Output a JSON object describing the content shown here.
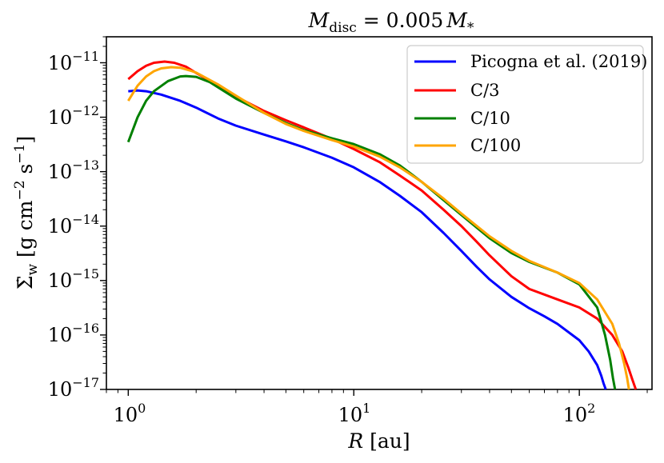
{
  "chart_data": {
    "type": "line",
    "title": "M_disc = 0.005 M_*",
    "title_parts": {
      "sym": "M",
      "sub": "disc",
      "eq": " = 0.005",
      "sym2": "M",
      "sub2": "*"
    },
    "xlabel": "R [au]",
    "xlabel_parts": {
      "sym": "R",
      "unit": " [au]"
    },
    "ylabel": "Σ̇w [g cm^-2 s^-1]",
    "ylabel_parts": {
      "sym": "Σ̇",
      "sub": "w",
      "unit1": " [g cm",
      "exp1": "−2",
      "unit2": " s",
      "exp2": "−1",
      "unit3": "]"
    },
    "xscale": "log",
    "yscale": "log",
    "xlim": [
      0.8,
      210
    ],
    "ylim": [
      1e-17,
      3e-11
    ],
    "legend_position": "top-right",
    "xticks": [
      {
        "value": 1,
        "base": "10",
        "exp": "0"
      },
      {
        "value": 10,
        "base": "10",
        "exp": "1"
      },
      {
        "value": 100,
        "base": "10",
        "exp": "2"
      }
    ],
    "yticks": [
      {
        "value": 1e-11,
        "base": "10",
        "exp": "−11"
      },
      {
        "value": 1e-12,
        "base": "10",
        "exp": "−12"
      },
      {
        "value": 1e-13,
        "base": "10",
        "exp": "−13"
      },
      {
        "value": 1e-14,
        "base": "10",
        "exp": "−14"
      },
      {
        "value": 1e-15,
        "base": "10",
        "exp": "−15"
      },
      {
        "value": 1e-16,
        "base": "10",
        "exp": "−16"
      },
      {
        "value": 1e-17,
        "base": "10",
        "exp": "−17"
      }
    ],
    "series": [
      {
        "name": "Picogna et al. (2019)",
        "color": "#0000ff",
        "x": [
          1.0,
          1.1,
          1.2,
          1.4,
          1.7,
          2.0,
          2.5,
          3.0,
          4.0,
          5.0,
          6.0,
          8.0,
          10.0,
          13.0,
          16.0,
          20.0,
          25.0,
          30.0,
          35.0,
          40.0,
          50.0,
          60.0,
          70.0,
          80.0,
          100.0,
          110.0,
          120.0,
          125.0,
          128.0,
          131.0
        ],
        "y": [
          3e-12,
          3.1e-12,
          3e-12,
          2.6e-12,
          2e-12,
          1.5e-12,
          9.5e-13,
          7e-13,
          4.8e-13,
          3.6e-13,
          2.8e-13,
          1.8e-13,
          1.2e-13,
          6.5e-14,
          3.6e-14,
          1.8e-14,
          7.5e-15,
          3.5e-15,
          1.8e-15,
          1.05e-15,
          5e-16,
          3.1e-16,
          2.2e-16,
          1.6e-16,
          8e-17,
          5e-17,
          2.8e-17,
          1.8e-17,
          1.3e-17,
          1e-17
        ]
      },
      {
        "name": "C/3",
        "color": "#ff0000",
        "x": [
          1.0,
          1.1,
          1.2,
          1.3,
          1.45,
          1.6,
          1.8,
          2.0,
          2.5,
          3.0,
          4.0,
          5.0,
          6.0,
          8.0,
          10.0,
          13.0,
          16.0,
          20.0,
          25.0,
          30.0,
          35.0,
          40.0,
          50.0,
          60.0,
          80.0,
          100.0,
          120.0,
          140.0,
          155.0,
          165.0,
          172.0,
          178.0
        ],
        "y": [
          5e-12,
          7e-12,
          8.8e-12,
          1e-11,
          1.05e-11,
          1e-11,
          8.5e-12,
          6.5e-12,
          3.8e-12,
          2.4e-12,
          1.3e-12,
          8.8e-13,
          6.5e-13,
          4e-13,
          2.6e-13,
          1.5e-13,
          8.5e-14,
          4.5e-14,
          2e-14,
          1e-14,
          5.2e-15,
          2.9e-15,
          1.2e-15,
          7e-16,
          4.5e-16,
          3.2e-16,
          2e-16,
          1e-16,
          5e-17,
          2.5e-17,
          1.5e-17,
          1e-17
        ]
      },
      {
        "name": "C/10",
        "color": "#008000",
        "x": [
          1.0,
          1.1,
          1.2,
          1.3,
          1.5,
          1.7,
          1.8,
          2.0,
          2.3,
          2.6,
          3.0,
          4.0,
          5.0,
          6.0,
          8.0,
          10.0,
          13.0,
          16.0,
          20.0,
          25.0,
          30.0,
          40.0,
          50.0,
          60.0,
          80.0,
          100.0,
          120.0,
          130.0,
          137.0,
          141.0,
          144.0
        ],
        "y": [
          3.5e-13,
          1e-12,
          2e-12,
          3e-12,
          4.6e-12,
          5.6e-12,
          5.7e-12,
          5.5e-12,
          4.4e-12,
          3.2e-12,
          2.2e-12,
          1.2e-12,
          7.8e-13,
          5.8e-13,
          4.1e-13,
          3.2e-13,
          2.1e-13,
          1.3e-13,
          6.5e-14,
          3e-14,
          1.6e-14,
          6e-15,
          3.2e-15,
          2.2e-15,
          1.4e-15,
          8.5e-16,
          3.2e-16,
          1e-16,
          3.5e-17,
          1.6e-17,
          1e-17
        ]
      },
      {
        "name": "C/100",
        "color": "#ffa500",
        "x": [
          1.0,
          1.1,
          1.2,
          1.3,
          1.4,
          1.55,
          1.7,
          1.9,
          2.0,
          2.5,
          3.0,
          4.0,
          5.0,
          6.0,
          8.0,
          10.0,
          13.0,
          16.0,
          20.0,
          25.0,
          30.0,
          40.0,
          50.0,
          60.0,
          80.0,
          100.0,
          120.0,
          140.0,
          150.0,
          158.0,
          163.0,
          166.0
        ],
        "y": [
          2e-12,
          3.8e-12,
          5.6e-12,
          7e-12,
          7.9e-12,
          8.3e-12,
          8.1e-12,
          7.1e-12,
          6.6e-12,
          4e-12,
          2.5e-12,
          1.2e-12,
          7.5e-13,
          5.6e-13,
          3.8e-13,
          2.9e-13,
          1.9e-13,
          1.2e-13,
          6.5e-14,
          3.2e-14,
          1.7e-14,
          6.5e-15,
          3.5e-15,
          2.3e-15,
          1.4e-15,
          9e-16,
          4.5e-16,
          1.6e-16,
          7e-17,
          3e-17,
          1.6e-17,
          1e-17
        ]
      }
    ]
  }
}
